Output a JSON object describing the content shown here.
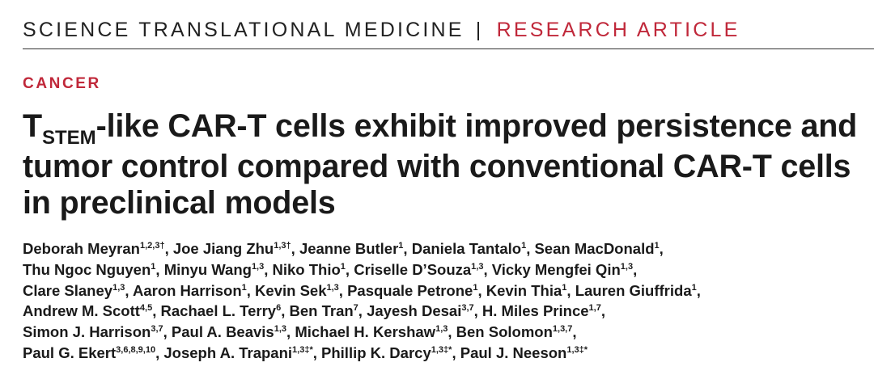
{
  "header": {
    "journal": "SCIENCE TRANSLATIONAL MEDICINE",
    "separator": "|",
    "article_type": "RESEARCH ARTICLE"
  },
  "section": "CANCER",
  "title": {
    "line1_prefix": "T",
    "line1_subscript": "STEM",
    "line1_rest": "-like CAR-T cells exhibit improved persistence and",
    "line2": "tumor control compared with conventional CAR-T cells",
    "line3": "in preclinical models"
  },
  "author_lines": [
    [
      {
        "name": "Deborah Meyran",
        "aff": "1,2,3",
        "mark": "†",
        "sep": ", "
      },
      {
        "name": "Joe Jiang Zhu",
        "aff": "1,3",
        "mark": "†",
        "sep": ", "
      },
      {
        "name": "Jeanne Butler",
        "aff": "1",
        "mark": "",
        "sep": ", "
      },
      {
        "name": "Daniela Tantalo",
        "aff": "1",
        "mark": "",
        "sep": ", "
      },
      {
        "name": "Sean MacDonald",
        "aff": "1",
        "mark": "",
        "sep": ","
      }
    ],
    [
      {
        "name": "Thu Ngoc Nguyen",
        "aff": "1",
        "mark": "",
        "sep": ", "
      },
      {
        "name": "Minyu Wang",
        "aff": "1,3",
        "mark": "",
        "sep": ", "
      },
      {
        "name": "Niko Thio",
        "aff": "1",
        "mark": "",
        "sep": ", "
      },
      {
        "name": "Criselle D’Souza",
        "aff": "1,3",
        "mark": "",
        "sep": ", "
      },
      {
        "name": "Vicky Mengfei Qin",
        "aff": "1,3",
        "mark": "",
        "sep": ","
      }
    ],
    [
      {
        "name": "Clare Slaney",
        "aff": "1,3",
        "mark": "",
        "sep": ", "
      },
      {
        "name": "Aaron Harrison",
        "aff": "1",
        "mark": "",
        "sep": ", "
      },
      {
        "name": "Kevin Sek",
        "aff": "1,3",
        "mark": "",
        "sep": ", "
      },
      {
        "name": "Pasquale Petrone",
        "aff": "1",
        "mark": "",
        "sep": ", "
      },
      {
        "name": "Kevin Thia",
        "aff": "1",
        "mark": "",
        "sep": ", "
      },
      {
        "name": "Lauren Giuffrida",
        "aff": "1",
        "mark": "",
        "sep": ","
      }
    ],
    [
      {
        "name": "Andrew M. Scott",
        "aff": "4,5",
        "mark": "",
        "sep": ", "
      },
      {
        "name": "Rachael L. Terry",
        "aff": "6",
        "mark": "",
        "sep": ", "
      },
      {
        "name": "Ben Tran",
        "aff": "7",
        "mark": "",
        "sep": ", "
      },
      {
        "name": "Jayesh Desai",
        "aff": "3,7",
        "mark": "",
        "sep": ", "
      },
      {
        "name": "H. Miles Prince",
        "aff": "1,7",
        "mark": "",
        "sep": ","
      }
    ],
    [
      {
        "name": "Simon J. Harrison",
        "aff": "3,7",
        "mark": "",
        "sep": ", "
      },
      {
        "name": "Paul A. Beavis",
        "aff": "1,3",
        "mark": "",
        "sep": ", "
      },
      {
        "name": "Michael H. Kershaw",
        "aff": "1,3",
        "mark": "",
        "sep": ", "
      },
      {
        "name": "Ben Solomon",
        "aff": "1,3,7",
        "mark": "",
        "sep": ","
      }
    ],
    [
      {
        "name": "Paul G. Ekert",
        "aff": "3,6,8,9,10",
        "mark": "",
        "sep": ", "
      },
      {
        "name": "Joseph A. Trapani",
        "aff": "1,3",
        "mark": "‡*",
        "sep": ", "
      },
      {
        "name": "Phillip K. Darcy",
        "aff": "1,3",
        "mark": "‡*",
        "sep": ", "
      },
      {
        "name": "Paul J. Neeson",
        "aff": "1,3",
        "mark": "‡*",
        "sep": ""
      }
    ]
  ],
  "colors": {
    "accent_red": "#c0283a",
    "text": "#1a1a1a",
    "rule": "#333333"
  }
}
